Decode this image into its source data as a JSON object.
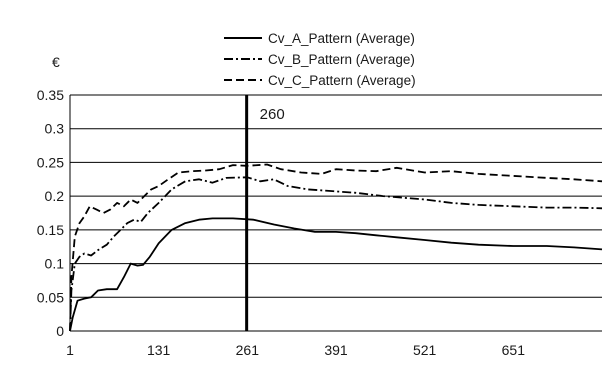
{
  "chart_data": {
    "type": "line",
    "title": "",
    "xlabel": "",
    "ylabel": "",
    "unit_label": "€",
    "xlim": [
      1,
      781
    ],
    "ylim": [
      0,
      0.35
    ],
    "x_ticks": [
      "1",
      "131",
      "261",
      "391",
      "521",
      "651"
    ],
    "y_ticks": [
      "0",
      "0.05",
      "0.1",
      "0.15",
      "0.2",
      "0.25",
      "0.3",
      "0.35"
    ],
    "grid": "horizontal",
    "legend_position": "top",
    "annotation": {
      "label": "260",
      "x": 260
    },
    "series": [
      {
        "name": "Cv_A_Pattern (Average)",
        "style": "solid",
        "points": [
          [
            1,
            0
          ],
          [
            5,
            0.02
          ],
          [
            12,
            0.045
          ],
          [
            22,
            0.048
          ],
          [
            32,
            0.05
          ],
          [
            42,
            0.06
          ],
          [
            55,
            0.062
          ],
          [
            70,
            0.062
          ],
          [
            80,
            0.08
          ],
          [
            90,
            0.1
          ],
          [
            100,
            0.097
          ],
          [
            108,
            0.098
          ],
          [
            118,
            0.11
          ],
          [
            131,
            0.13
          ],
          [
            150,
            0.15
          ],
          [
            170,
            0.16
          ],
          [
            190,
            0.165
          ],
          [
            210,
            0.167
          ],
          [
            240,
            0.167
          ],
          [
            270,
            0.165
          ],
          [
            300,
            0.158
          ],
          [
            330,
            0.152
          ],
          [
            360,
            0.147
          ],
          [
            391,
            0.147
          ],
          [
            420,
            0.145
          ],
          [
            450,
            0.142
          ],
          [
            480,
            0.139
          ],
          [
            521,
            0.135
          ],
          [
            560,
            0.131
          ],
          [
            600,
            0.128
          ],
          [
            651,
            0.126
          ],
          [
            700,
            0.126
          ],
          [
            740,
            0.124
          ],
          [
            781,
            0.121
          ]
        ]
      },
      {
        "name": "Cv_B_Pattern (Average)",
        "style": "dash-dot",
        "points": [
          [
            1,
            0
          ],
          [
            3,
            0.06
          ],
          [
            8,
            0.1
          ],
          [
            15,
            0.11
          ],
          [
            22,
            0.115
          ],
          [
            32,
            0.112
          ],
          [
            42,
            0.12
          ],
          [
            55,
            0.128
          ],
          [
            65,
            0.14
          ],
          [
            75,
            0.15
          ],
          [
            85,
            0.16
          ],
          [
            95,
            0.165
          ],
          [
            105,
            0.162
          ],
          [
            115,
            0.175
          ],
          [
            131,
            0.19
          ],
          [
            150,
            0.21
          ],
          [
            170,
            0.222
          ],
          [
            190,
            0.225
          ],
          [
            210,
            0.22
          ],
          [
            230,
            0.227
          ],
          [
            261,
            0.228
          ],
          [
            280,
            0.222
          ],
          [
            300,
            0.225
          ],
          [
            320,
            0.215
          ],
          [
            350,
            0.21
          ],
          [
            391,
            0.207
          ],
          [
            420,
            0.205
          ],
          [
            460,
            0.2
          ],
          [
            521,
            0.195
          ],
          [
            560,
            0.19
          ],
          [
            600,
            0.187
          ],
          [
            651,
            0.185
          ],
          [
            700,
            0.183
          ],
          [
            740,
            0.183
          ],
          [
            781,
            0.182
          ]
        ]
      },
      {
        "name": "Cv_C_Pattern (Average)",
        "style": "dashed",
        "points": [
          [
            1,
            0
          ],
          [
            3,
            0.08
          ],
          [
            8,
            0.14
          ],
          [
            15,
            0.16
          ],
          [
            22,
            0.17
          ],
          [
            30,
            0.185
          ],
          [
            40,
            0.18
          ],
          [
            50,
            0.175
          ],
          [
            60,
            0.18
          ],
          [
            70,
            0.19
          ],
          [
            80,
            0.185
          ],
          [
            90,
            0.195
          ],
          [
            100,
            0.19
          ],
          [
            110,
            0.2
          ],
          [
            120,
            0.21
          ],
          [
            131,
            0.215
          ],
          [
            145,
            0.225
          ],
          [
            160,
            0.235
          ],
          [
            180,
            0.237
          ],
          [
            200,
            0.238
          ],
          [
            220,
            0.24
          ],
          [
            240,
            0.246
          ],
          [
            261,
            0.245
          ],
          [
            290,
            0.247
          ],
          [
            310,
            0.24
          ],
          [
            340,
            0.235
          ],
          [
            370,
            0.233
          ],
          [
            391,
            0.24
          ],
          [
            420,
            0.238
          ],
          [
            450,
            0.237
          ],
          [
            480,
            0.242
          ],
          [
            521,
            0.235
          ],
          [
            560,
            0.237
          ],
          [
            600,
            0.233
          ],
          [
            651,
            0.23
          ],
          [
            700,
            0.227
          ],
          [
            740,
            0.225
          ],
          [
            781,
            0.222
          ]
        ]
      }
    ]
  }
}
